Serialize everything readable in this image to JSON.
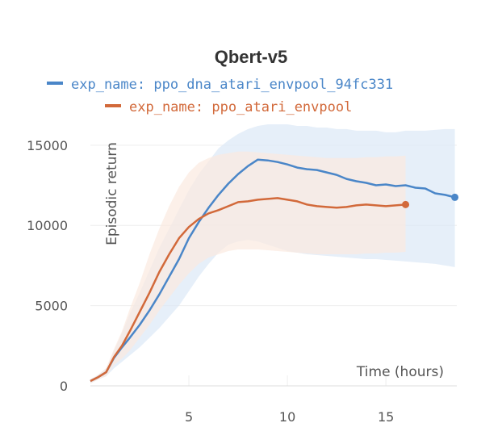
{
  "chart_data": {
    "type": "line",
    "title": "Qbert-v5",
    "xlabel": "Time (hours)",
    "ylabel": "Episodic return",
    "xlim": [
      0,
      18.6
    ],
    "ylim": [
      0,
      16500
    ],
    "xticks": [
      "5",
      "10",
      "15"
    ],
    "yticks": [
      "0",
      "5000",
      "10000",
      "15000"
    ],
    "grid": true,
    "legend_position": "top",
    "series": [
      {
        "name": "exp_name: ppo_dna_atari_envpool_94fc331",
        "color": "#4a86c8",
        "band_color": "#dbe8f6",
        "x": [
          0,
          0.4,
          0.8,
          1.2,
          1.6,
          2.0,
          2.5,
          3.0,
          3.5,
          4.0,
          4.5,
          5.0,
          5.5,
          6.0,
          6.5,
          7.0,
          7.5,
          8.0,
          8.5,
          9.0,
          9.5,
          10.0,
          10.5,
          11.0,
          11.5,
          12.0,
          12.5,
          13.0,
          13.5,
          14.0,
          14.5,
          15.0,
          15.5,
          16.0,
          16.5,
          17.0,
          17.5,
          18.0,
          18.5
        ],
        "values": [
          300,
          550,
          850,
          1750,
          2400,
          3000,
          3800,
          4700,
          5700,
          6800,
          7900,
          9200,
          10200,
          11100,
          11900,
          12600,
          13200,
          13700,
          14100,
          14050,
          13950,
          13800,
          13600,
          13500,
          13450,
          13300,
          13150,
          12900,
          12750,
          12650,
          12500,
          12550,
          12450,
          12500,
          12350,
          12300,
          12000,
          11900,
          11750
        ],
        "upper": [
          400,
          700,
          1100,
          2200,
          3300,
          4500,
          5800,
          7200,
          8600,
          9800,
          11000,
          12200,
          13200,
          14000,
          14800,
          15300,
          15700,
          16000,
          16200,
          16300,
          16300,
          16300,
          16200,
          16200,
          16100,
          16100,
          16000,
          16000,
          15900,
          15900,
          15900,
          15800,
          15800,
          15900,
          15900,
          15900,
          15950,
          16000,
          16000
        ],
        "lower": [
          150,
          400,
          600,
          1100,
          1500,
          1900,
          2400,
          3000,
          3600,
          4300,
          5000,
          5900,
          6800,
          7600,
          8300,
          8800,
          9000,
          9100,
          9000,
          8800,
          8600,
          8400,
          8300,
          8200,
          8150,
          8100,
          8050,
          8000,
          7950,
          7900,
          7900,
          7850,
          7800,
          7750,
          7700,
          7650,
          7600,
          7500,
          7400
        ]
      },
      {
        "name": "exp_name: ppo_atari_envpool",
        "color": "#d2693a",
        "band_color": "#fbe9df",
        "x": [
          0,
          0.4,
          0.8,
          1.2,
          1.6,
          2.0,
          2.5,
          3.0,
          3.5,
          4.0,
          4.5,
          5.0,
          5.5,
          6.0,
          6.5,
          7.0,
          7.5,
          8.0,
          8.5,
          9.0,
          9.5,
          10.0,
          10.5,
          11.0,
          11.5,
          12.0,
          12.5,
          13.0,
          13.5,
          14.0,
          14.5,
          15.0,
          15.5,
          16.0
        ],
        "values": [
          300,
          550,
          850,
          1800,
          2500,
          3400,
          4600,
          5800,
          7100,
          8200,
          9200,
          9900,
          10400,
          10750,
          10950,
          11200,
          11450,
          11500,
          11600,
          11650,
          11700,
          11600,
          11500,
          11300,
          11200,
          11150,
          11100,
          11150,
          11250,
          11300,
          11250,
          11200,
          11250,
          11300
        ],
        "upper": [
          400,
          700,
          1100,
          2300,
          3400,
          4800,
          6400,
          8200,
          9800,
          11200,
          12400,
          13300,
          13900,
          14200,
          14400,
          14500,
          14600,
          14600,
          14550,
          14500,
          14450,
          14400,
          14350,
          14300,
          14250,
          14200,
          14200,
          14200,
          14200,
          14250,
          14250,
          14300,
          14300,
          14350
        ],
        "lower": [
          150,
          400,
          600,
          1300,
          1700,
          2200,
          3000,
          3800,
          4700,
          5500,
          6300,
          7000,
          7600,
          8000,
          8200,
          8400,
          8500,
          8500,
          8500,
          8450,
          8400,
          8350,
          8300,
          8250,
          8200,
          8200,
          8200,
          8200,
          8200,
          8250,
          8250,
          8300,
          8300,
          8350
        ]
      }
    ]
  }
}
